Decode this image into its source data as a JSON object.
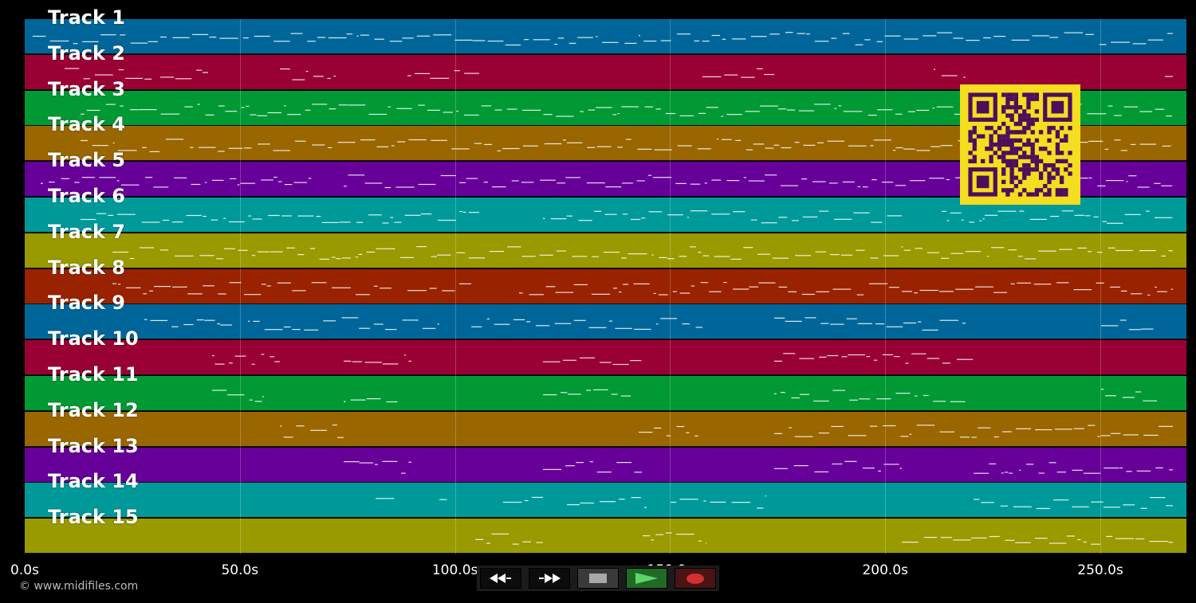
{
  "tracks": [
    {
      "label": "Track 1",
      "color": "#006699"
    },
    {
      "label": "Track 2",
      "color": "#990033"
    },
    {
      "label": "Track 3",
      "color": "#009933"
    },
    {
      "label": "Track 4",
      "color": "#996600"
    },
    {
      "label": "Track 5",
      "color": "#660099"
    },
    {
      "label": "Track 6",
      "color": "#009999"
    },
    {
      "label": "Track 7",
      "color": "#999900"
    },
    {
      "label": "Track 8",
      "color": "#992200"
    },
    {
      "label": "Track 9",
      "color": "#006699"
    },
    {
      "label": "Track 10",
      "color": "#990033"
    },
    {
      "label": "Track 11",
      "color": "#009933"
    },
    {
      "label": "Track 12",
      "color": "#996600"
    },
    {
      "label": "Track 13",
      "color": "#660099"
    },
    {
      "label": "Track 14",
      "color": "#009999"
    },
    {
      "label": "Track 15",
      "color": "#999900"
    }
  ],
  "timeline": {
    "max_seconds": 270,
    "ticks": [
      "0.0s",
      "50.0s",
      "100.0s",
      "150.0s",
      "200.0s",
      "250.0s"
    ],
    "tick_values": [
      0,
      50,
      100,
      150,
      200,
      250
    ]
  },
  "copyright": "© www.midifiles.com",
  "controls": {
    "rewind_icon": "rewind-icon",
    "forward_icon": "fast-forward-icon",
    "stop_icon": "stop-icon",
    "play_icon": "play-icon",
    "record_icon": "record-icon"
  },
  "qr_color": "#f5dd1f",
  "qr_ink": "#4b0f5c"
}
